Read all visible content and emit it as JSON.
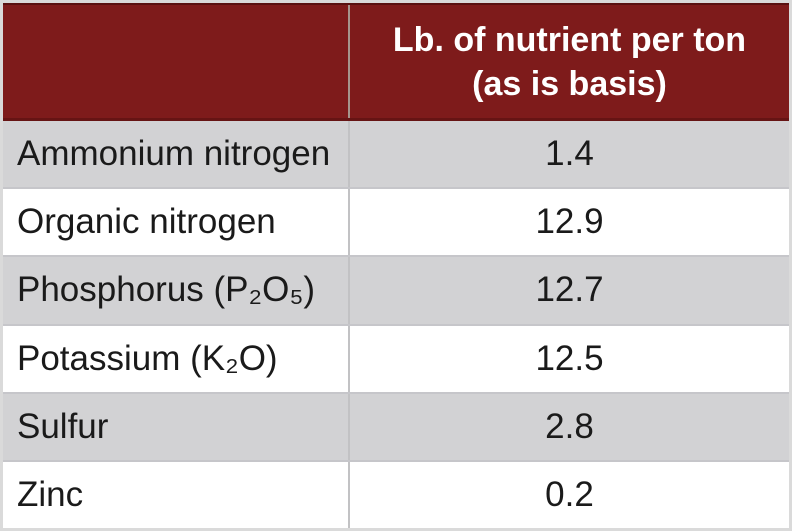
{
  "table": {
    "header": {
      "nutrient_column_label": "",
      "value_column_line1": "Lb. of nutrient per ton",
      "value_column_line2": "(as is basis)"
    },
    "rows": [
      {
        "nutrient": "Ammonium nitrogen",
        "value": "1.4"
      },
      {
        "nutrient": "Organic nitrogen",
        "value": "12.9"
      },
      {
        "nutrient": "Phosphorus (P₂O₅)",
        "value": "12.7"
      },
      {
        "nutrient": "Potassium (K₂O)",
        "value": "12.5"
      },
      {
        "nutrient": "Sulfur",
        "value": "2.8"
      },
      {
        "nutrient": "Zinc",
        "value": "0.2"
      }
    ],
    "colors": {
      "header_bg": "#7E1B1B",
      "header_text": "#FFFFFF",
      "stripe_bg": "#D2D2D4",
      "row_bg": "#FFFFFF",
      "body_text": "#1A1A1A",
      "row_border": "#C6C6CA",
      "header_divider": "#A6958D"
    }
  },
  "chart_data": {
    "type": "table",
    "title": "",
    "columns": [
      "",
      "Lb. of nutrient per ton (as is basis)"
    ],
    "rows": [
      [
        "Ammonium nitrogen",
        1.4
      ],
      [
        "Organic nitrogen",
        12.9
      ],
      [
        "Phosphorus (P₂O₅)",
        12.7
      ],
      [
        "Potassium (K₂O)",
        12.5
      ],
      [
        "Sulfur",
        2.8
      ],
      [
        "Zinc",
        0.2
      ]
    ]
  }
}
